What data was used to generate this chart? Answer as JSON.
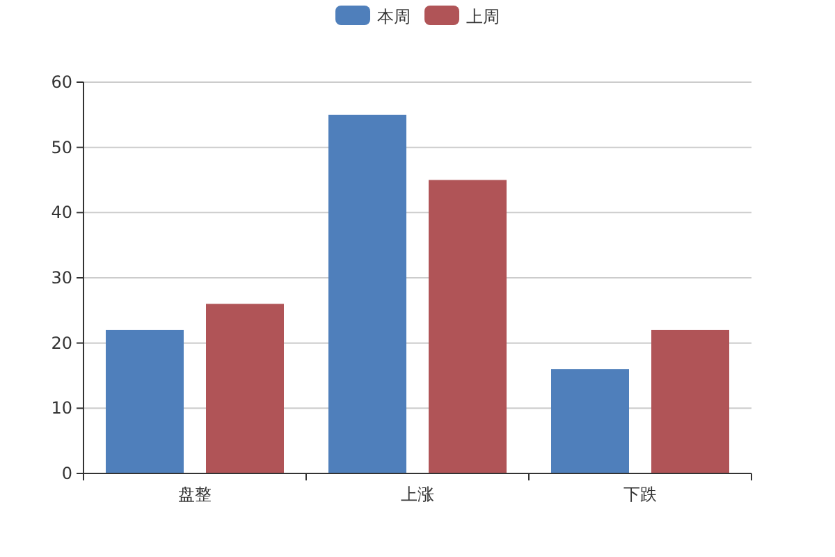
{
  "chart_data": {
    "type": "bar",
    "categories": [
      "盘整",
      "上涨",
      "下跌"
    ],
    "series": [
      {
        "name": "本周",
        "color": "#4f7fbb",
        "values": [
          22,
          55,
          16
        ]
      },
      {
        "name": "上周",
        "color": "#b05457",
        "values": [
          26,
          45,
          22
        ]
      }
    ],
    "ylim": [
      0,
      60
    ],
    "yticks": [
      0,
      10,
      20,
      30,
      40,
      50,
      60
    ],
    "grid": "y",
    "legend": "top"
  }
}
